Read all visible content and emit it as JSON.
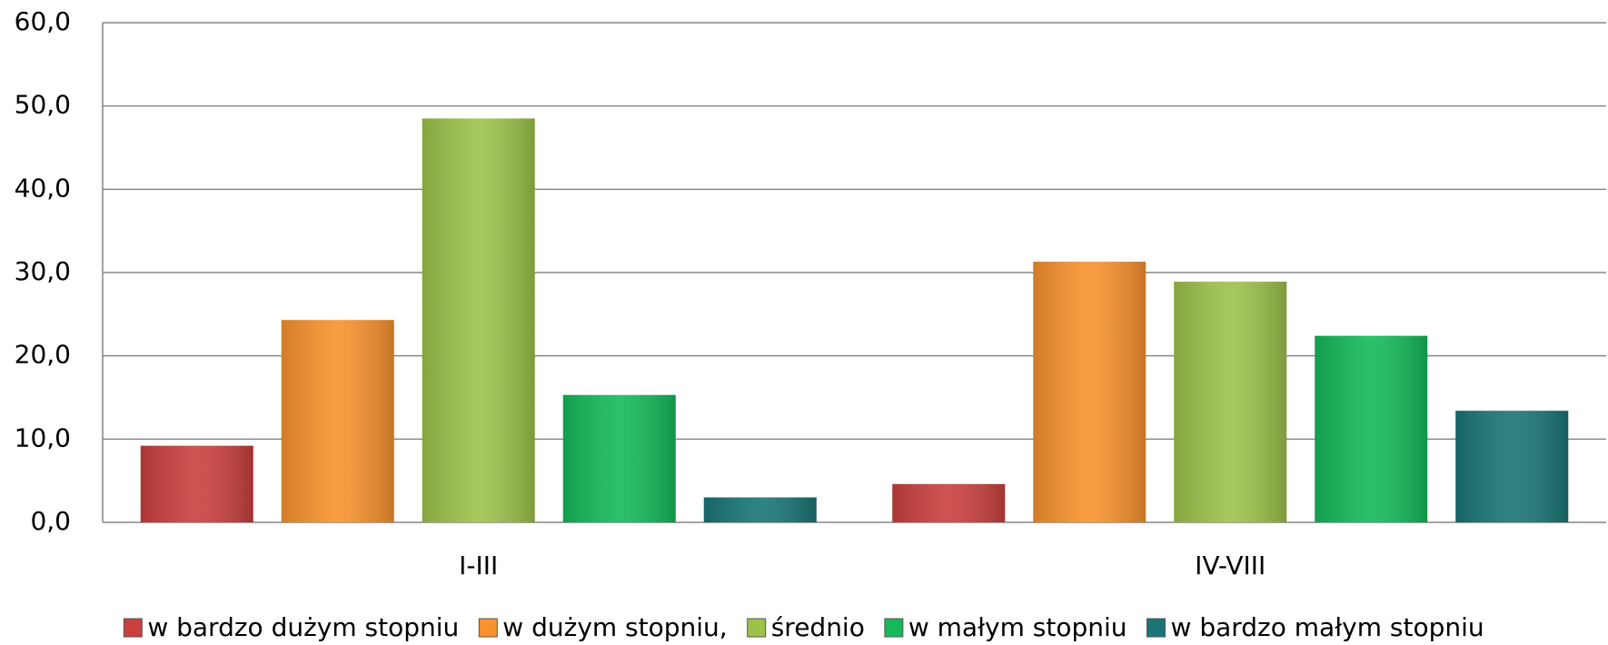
{
  "chart_data": {
    "type": "bar",
    "categories": [
      "I-III",
      "IV-VIII"
    ],
    "series": [
      {
        "name": "w bardzo dużym stopniu",
        "color": "#c9403e",
        "values": [
          9.2,
          4.6
        ]
      },
      {
        "name": "w dużym stopniu,",
        "color": "#f7922e",
        "values": [
          24.3,
          31.3
        ]
      },
      {
        "name": "średnio",
        "color": "#9cc24a",
        "values": [
          48.5,
          28.9
        ]
      },
      {
        "name": "w małym stopniu",
        "color": "#14b95a",
        "values": [
          15.3,
          22.4
        ]
      },
      {
        "name": "w bardzo małym stopniu",
        "color": "#1a7576",
        "values": [
          3.0,
          13.4
        ]
      }
    ],
    "ylim": [
      0,
      60
    ],
    "yticks": [
      {
        "value": 0,
        "label": "0,0"
      },
      {
        "value": 10,
        "label": "10,0"
      },
      {
        "value": 20,
        "label": "20,0"
      },
      {
        "value": 30,
        "label": "30,0"
      },
      {
        "value": 40,
        "label": "40,0"
      },
      {
        "value": 50,
        "label": "50,0"
      },
      {
        "value": 60,
        "label": "60,0"
      }
    ],
    "grid": true,
    "legend": "bottom"
  }
}
